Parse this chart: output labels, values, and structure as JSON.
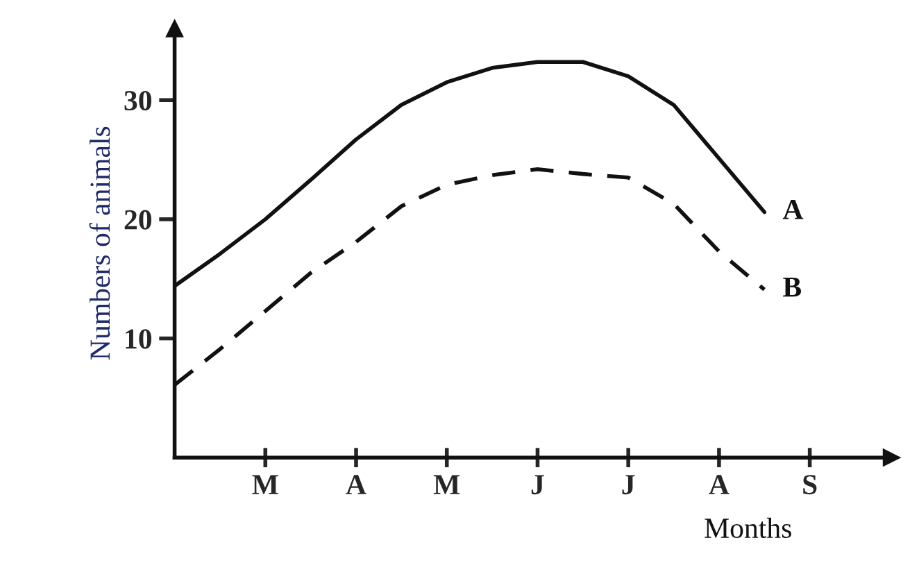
{
  "chart_data": {
    "type": "line",
    "ylabel": "Numbers of animals",
    "xlabel": "Months",
    "categories": [
      null,
      null,
      "M",
      null,
      "A",
      null,
      "M",
      null,
      "J",
      null,
      "J",
      null,
      "A",
      null,
      "S"
    ],
    "ylim": [
      0,
      36
    ],
    "yticks": [
      10,
      20,
      30
    ],
    "grid": false,
    "legend": false,
    "series": [
      {
        "name": "A",
        "color": "#111111",
        "line_style": "solid",
        "values": [
          14.4,
          17.1,
          20.0,
          23.3,
          26.7,
          29.6,
          31.5,
          32.7,
          33.2,
          33.2,
          32.0,
          29.6,
          25.1,
          20.6,
          null
        ]
      },
      {
        "name": "B",
        "color": "#111111",
        "line_style": "dashed",
        "values": [
          6.1,
          9.1,
          12.3,
          15.5,
          18.1,
          21.1,
          22.9,
          23.7,
          24.2,
          23.8,
          23.5,
          21.3,
          17.3,
          14.1,
          null
        ]
      }
    ]
  }
}
